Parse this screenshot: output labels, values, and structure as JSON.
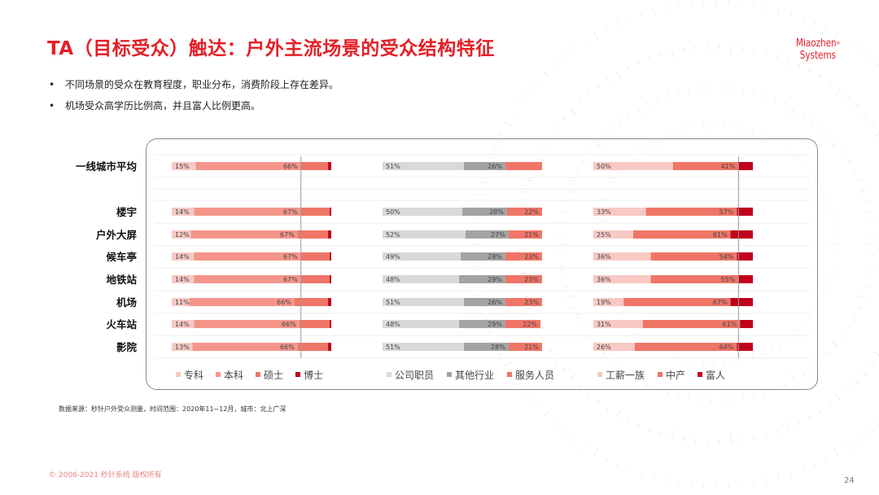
{
  "slide": {
    "title": "TA（目标受众）触达：户外主流场景的受众结构特征",
    "bullets": [
      "不同场景的受众在教育程度，职业分布，消费阶段上存在差异。",
      "机场受众高学历比例高，并且富人比例更高。"
    ],
    "logo_line1": "Miaozhen",
    "logo_mark": "®",
    "logo_line2": "Systems",
    "source": "数据来源：秒针户外受众测量，时间范围：2020年11~12月，城市：北上广深",
    "copyright": "© 2006-2021 秒针系统 版权所有",
    "page_number": "24"
  },
  "colors": {
    "brand": "#e41f26",
    "edu": [
      "#f8c9c4",
      "#f5958a",
      "#ef7566",
      "#c0001c"
    ],
    "job": [
      "#d9d9d9",
      "#a3a3a3",
      "#ef7566"
    ],
    "wealth": [
      "#f8c9c4",
      "#ef7566",
      "#c0001c"
    ]
  },
  "chart_data": {
    "type": "bar",
    "subtype": "stacked-100-horizontal",
    "categories": [
      "一线城市平均",
      "楼宇",
      "户外大屏",
      "候车亭",
      "地铁站",
      "机场",
      "火车站",
      "影院"
    ],
    "groups": [
      {
        "id": "education",
        "series": [
          {
            "name": "专科",
            "values": [
              15,
              14,
              12,
              14,
              14,
              11,
              14,
              13
            ]
          },
          {
            "name": "本科",
            "values": [
              66,
              67,
              67,
              67,
              67,
              66,
              66,
              66
            ]
          },
          {
            "name": "硕士",
            "values": [
              17,
              18,
              19,
              18,
              18,
              21,
              19,
              19
            ]
          },
          {
            "name": "博士",
            "values": [
              2,
              1,
              2,
              1,
              1,
              2,
              1,
              2
            ]
          }
        ],
        "labeled_series": [
          0,
          1
        ],
        "reference_line": 81
      },
      {
        "id": "occupation",
        "series": [
          {
            "name": "公司职员",
            "values": [
              51,
              50,
              52,
              49,
              48,
              51,
              48,
              51
            ]
          },
          {
            "name": "其他行业",
            "values": [
              26,
              28,
              27,
              28,
              29,
              26,
              29,
              28
            ]
          },
          {
            "name": "服务人员",
            "values": [
              23,
              22,
              21,
              23,
              23,
              23,
              22,
              21
            ]
          }
        ],
        "labeled_series": [
          0,
          1,
          2
        ],
        "label_first_row": [
          0,
          1
        ]
      },
      {
        "id": "wealth",
        "series": [
          {
            "name": "工薪一族",
            "values": [
              50,
              33,
              25,
              36,
              36,
              19,
              31,
              26
            ]
          },
          {
            "name": "中产",
            "values": [
              41,
              57,
              61,
              54,
              55,
              67,
              61,
              64
            ]
          },
          {
            "name": "富人",
            "values": [
              9,
              10,
              14,
              10,
              9,
              14,
              8,
              10
            ]
          }
        ],
        "labeled_series": [
          0,
          1
        ],
        "reference_line": 91
      }
    ]
  }
}
